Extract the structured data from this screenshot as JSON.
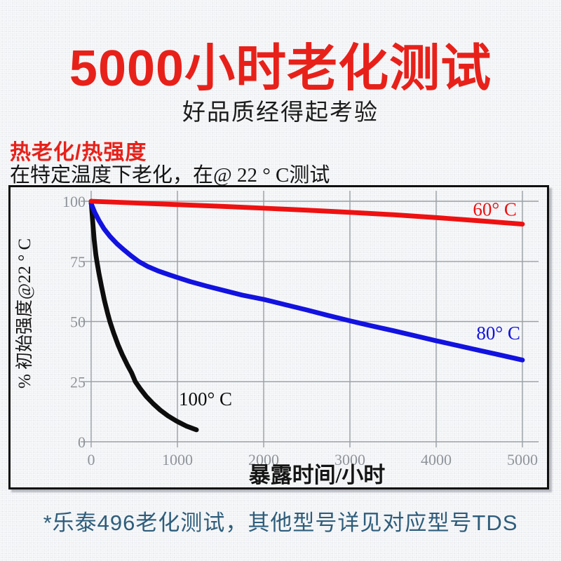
{
  "page": {
    "title": "5000小时老化测试",
    "subtitle": "好品质经得起考验",
    "section_heading": "热老化/热强度",
    "section_desc": "在特定温度下老化，在@ 22 ° C测试",
    "footnote": "*乐泰496老化测试，其他型号详见对应型号TDS"
  },
  "colors": {
    "accent_red": "#e7211a",
    "footnote_blue": "#2e5d7b",
    "frame": "#101010",
    "grid": "#9aa0a6",
    "tick_text": "#8f949b",
    "axis_text": "#151515"
  },
  "chart_data": {
    "type": "line",
    "title": "",
    "xlabel": "暴露时间/小时",
    "ylabel": "% 初始强度@22 ° C",
    "xlim": [
      0,
      5000
    ],
    "ylim": [
      0,
      100
    ],
    "xticks": [
      0,
      1000,
      2000,
      3000,
      4000,
      5000
    ],
    "yticks": [
      0,
      25,
      50,
      75,
      100
    ],
    "grid": true,
    "legend_position": "inline-labels",
    "series": [
      {
        "name": "100° C",
        "color": "#0d0d0d",
        "label_pos": {
          "x": 1325,
          "y": 15.2
        },
        "points": [
          [
            0,
            100
          ],
          [
            15,
            93
          ],
          [
            35,
            84
          ],
          [
            55,
            77.5
          ],
          [
            67,
            75
          ],
          [
            90,
            70
          ],
          [
            120,
            64.5
          ],
          [
            155,
            58.5
          ],
          [
            190,
            53.5
          ],
          [
            217,
            50
          ],
          [
            260,
            45.3
          ],
          [
            310,
            40.5
          ],
          [
            360,
            36.3
          ],
          [
            420,
            31.9
          ],
          [
            470,
            28.6
          ],
          [
            512,
            25
          ],
          [
            570,
            22
          ],
          [
            640,
            18.8
          ],
          [
            720,
            15.8
          ],
          [
            800,
            13.2
          ],
          [
            890,
            10.8
          ],
          [
            990,
            8.6
          ],
          [
            1100,
            6.6
          ],
          [
            1220,
            5
          ]
        ]
      },
      {
        "name": "80° C",
        "color": "#1212e0",
        "label_pos": {
          "x": 4720,
          "y": 42.5
        },
        "points": [
          [
            0,
            99
          ],
          [
            40,
            95.5
          ],
          [
            90,
            92
          ],
          [
            150,
            88.5
          ],
          [
            220,
            85.3
          ],
          [
            300,
            82.3
          ],
          [
            380,
            79.8
          ],
          [
            460,
            77.4
          ],
          [
            550,
            75
          ],
          [
            660,
            72.8
          ],
          [
            780,
            71
          ],
          [
            900,
            69.5
          ],
          [
            1000,
            68.3
          ],
          [
            1150,
            66.6
          ],
          [
            1350,
            64.6
          ],
          [
            1550,
            62.8
          ],
          [
            1750,
            61
          ],
          [
            2000,
            59.2
          ],
          [
            2250,
            57
          ],
          [
            2500,
            54.8
          ],
          [
            2750,
            52.5
          ],
          [
            3000,
            50.3
          ],
          [
            3250,
            48.2
          ],
          [
            3500,
            46.2
          ],
          [
            3750,
            44.1
          ],
          [
            4000,
            42
          ],
          [
            4250,
            40
          ],
          [
            4500,
            38
          ],
          [
            4750,
            36
          ],
          [
            5000,
            34
          ]
        ]
      },
      {
        "name": "60° C",
        "color": "#ee1111",
        "label_pos": {
          "x": 4680,
          "y": 94
        },
        "points": [
          [
            0,
            100
          ],
          [
            500,
            99.3
          ],
          [
            1000,
            98.6
          ],
          [
            1500,
            97.9
          ],
          [
            2000,
            97.1
          ],
          [
            2500,
            96.3
          ],
          [
            3000,
            95.4
          ],
          [
            3500,
            94.4
          ],
          [
            4000,
            93.2
          ],
          [
            4500,
            91.9
          ],
          [
            5000,
            90.5
          ]
        ]
      }
    ]
  }
}
